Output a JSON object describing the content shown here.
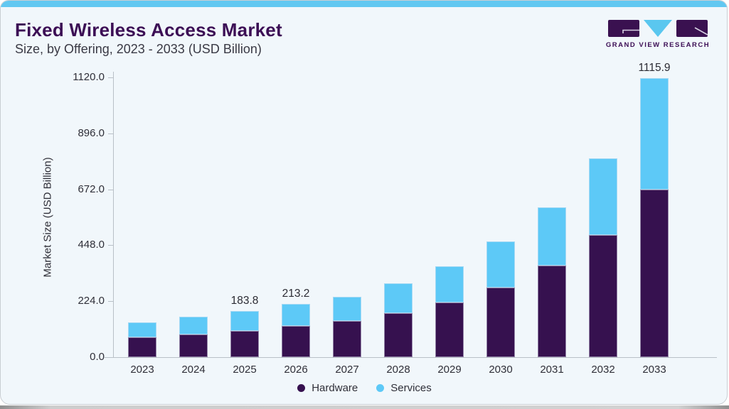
{
  "page": {
    "title": "Fixed Wireless Access Market",
    "subtitle": "Size, by Offering, 2023 - 2033 (USD Billion)"
  },
  "logo": {
    "text": "GRAND VIEW RESEARCH",
    "block_color": "#3a1150",
    "triangle_color": "#5ac7ef",
    "glyph_line_color": "#d8d2e4"
  },
  "chart_data": {
    "type": "bar",
    "stacked": true,
    "title": "Fixed Wireless Access Market Size, by Offering, 2023 - 2033 (USD Billion)",
    "categories": [
      "2023",
      "2024",
      "2025",
      "2026",
      "2027",
      "2028",
      "2029",
      "2030",
      "2031",
      "2032",
      "2033"
    ],
    "series": [
      {
        "name": "Hardware",
        "color": "#36114f",
        "values": [
          80.4,
          90.1,
          105.0,
          125.0,
          144.2,
          177.5,
          218.3,
          278.0,
          365.5,
          488.9,
          670.0
        ]
      },
      {
        "name": "Services",
        "color": "#5dc9f7",
        "values": [
          58.9,
          71.1,
          78.8,
          88.2,
          97.9,
          116.9,
          145.3,
          184.4,
          234.5,
          306.8,
          445.9
        ]
      }
    ],
    "total_labels": [
      "",
      "",
      "183.8",
      "213.2",
      "",
      "",
      "",
      "",
      "",
      "",
      "1115.9"
    ],
    "ylabel": "Market Size (USD Billion)",
    "ylim": [
      0,
      1120
    ],
    "y_ticks": [
      0,
      224,
      448,
      672,
      896,
      1120
    ],
    "y_tick_labels": [
      "0.0",
      "224.0",
      "448.0",
      "672.0",
      "896.0",
      "1120.0"
    ],
    "grid": false,
    "legend_position": "bottom"
  }
}
